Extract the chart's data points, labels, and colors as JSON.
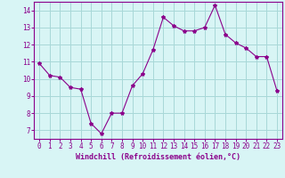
{
  "x": [
    0,
    1,
    2,
    3,
    4,
    5,
    6,
    7,
    8,
    9,
    10,
    11,
    12,
    13,
    14,
    15,
    16,
    17,
    18,
    19,
    20,
    21,
    22,
    23
  ],
  "y": [
    10.9,
    10.2,
    10.1,
    9.5,
    9.4,
    7.4,
    6.8,
    8.0,
    8.0,
    9.6,
    10.3,
    11.7,
    13.6,
    13.1,
    12.8,
    12.8,
    13.0,
    14.3,
    12.6,
    12.1,
    11.8,
    11.3,
    11.3,
    9.3
  ],
  "line_color": "#8B008B",
  "marker": "*",
  "marker_size": 3,
  "bg_color": "#d8f5f5",
  "grid_color": "#a8d8d8",
  "xlabel": "Windchill (Refroidissement éolien,°C)",
  "xlabel_color": "#8B008B",
  "tick_color": "#8B008B",
  "ylim": [
    6.5,
    14.5
  ],
  "xlim": [
    -0.5,
    23.5
  ],
  "yticks": [
    7,
    8,
    9,
    10,
    11,
    12,
    13,
    14
  ],
  "xticks": [
    0,
    1,
    2,
    3,
    4,
    5,
    6,
    7,
    8,
    9,
    10,
    11,
    12,
    13,
    14,
    15,
    16,
    17,
    18,
    19,
    20,
    21,
    22,
    23
  ],
  "xtick_labels": [
    "0",
    "1",
    "2",
    "3",
    "4",
    "5",
    "6",
    "7",
    "8",
    "9",
    "10",
    "11",
    "12",
    "13",
    "14",
    "15",
    "16",
    "17",
    "18",
    "19",
    "20",
    "21",
    "22",
    "23"
  ],
  "spine_color": "#8B008B",
  "tick_fontsize": 5.5,
  "xlabel_fontsize": 6.0
}
